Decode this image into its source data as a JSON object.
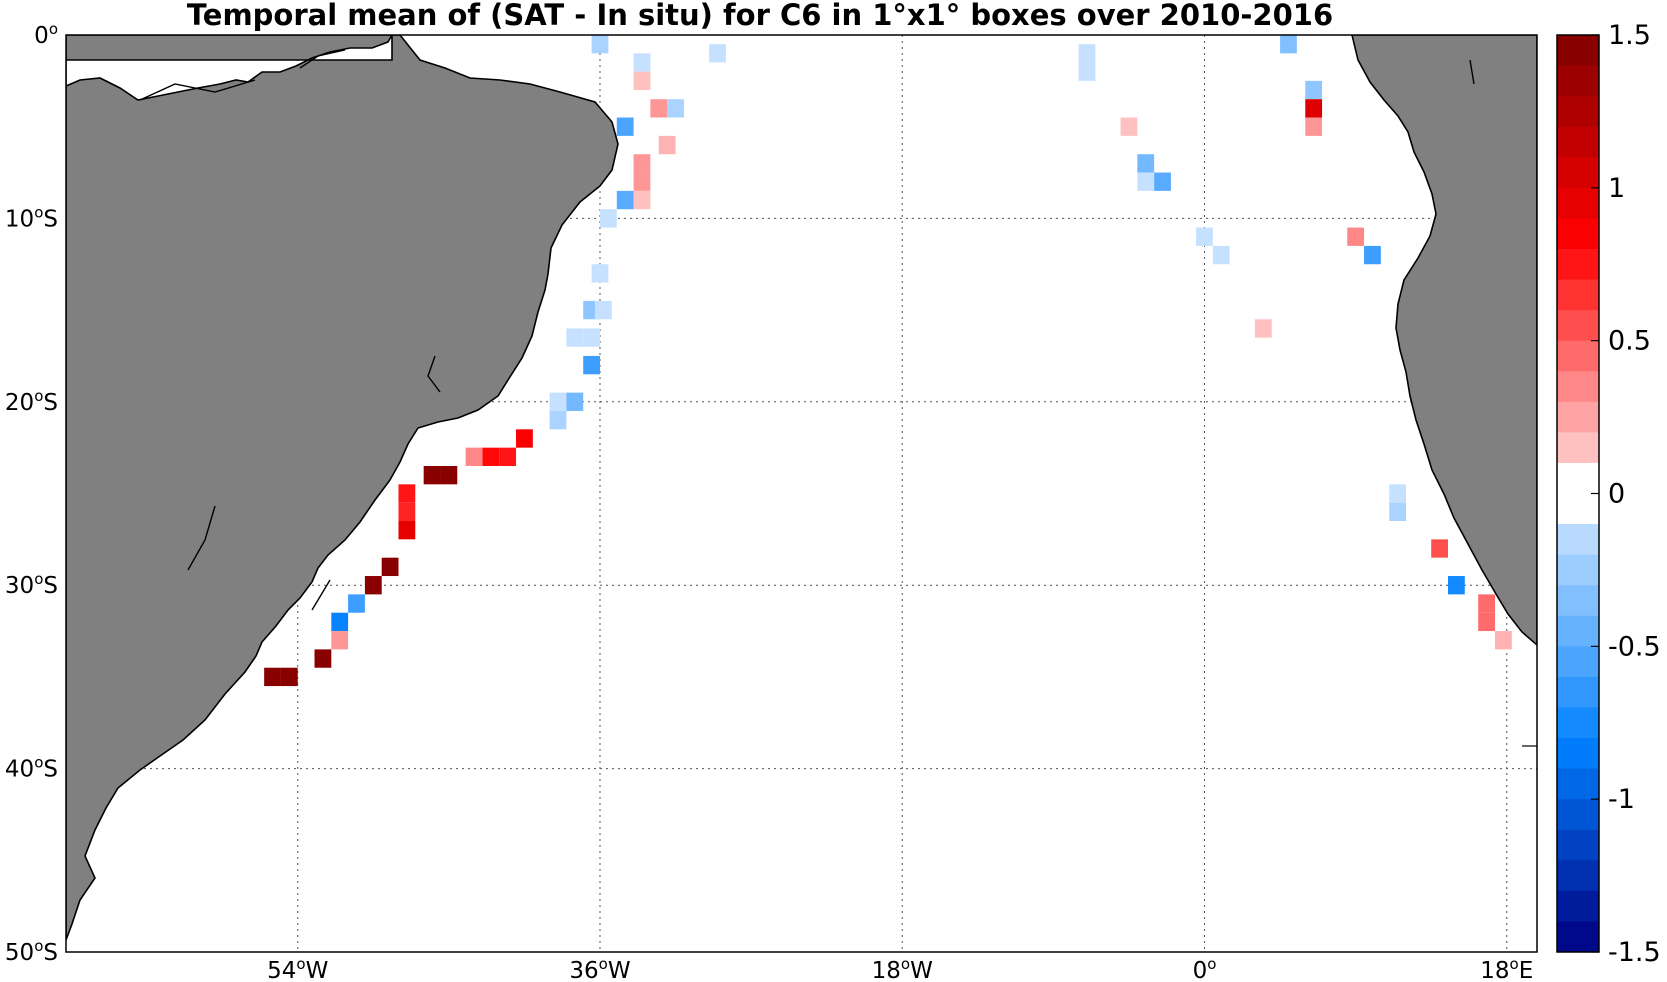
{
  "title": "Temporal mean of (SAT - In situ) for C6 in 1°x1° boxes over 2010-2016",
  "map": {
    "lon_range": [
      -67.8,
      19.8
    ],
    "lat_range": [
      -50,
      0
    ],
    "land_color": "#808080",
    "grid": true
  },
  "lat_ticks": [
    {
      "lat": 0,
      "main": "0",
      "sup": "o",
      "suffix": ""
    },
    {
      "lat": -10,
      "main": "10",
      "sup": "o",
      "suffix": "S"
    },
    {
      "lat": -20,
      "main": "20",
      "sup": "o",
      "suffix": "S"
    },
    {
      "lat": -30,
      "main": "30",
      "sup": "o",
      "suffix": "S"
    },
    {
      "lat": -40,
      "main": "40",
      "sup": "o",
      "suffix": "S"
    },
    {
      "lat": -50,
      "main": "50",
      "sup": "o",
      "suffix": "S"
    }
  ],
  "lon_ticks": [
    {
      "lon": -54,
      "main": "54",
      "sup": "o",
      "suffix": "W"
    },
    {
      "lon": -36,
      "main": "36",
      "sup": "o",
      "suffix": "W"
    },
    {
      "lon": -18,
      "main": "18",
      "sup": "o",
      "suffix": "W"
    },
    {
      "lon": 0,
      "main": "0",
      "sup": "o",
      "suffix": ""
    },
    {
      "lon": 18,
      "main": "18",
      "sup": "o",
      "suffix": "E"
    }
  ],
  "colorbar": {
    "range": [
      -1.5,
      1.5
    ],
    "levels": 30,
    "ticks": [
      {
        "value": 1.5,
        "label": "1.5"
      },
      {
        "value": 1,
        "label": "1"
      },
      {
        "value": 0.5,
        "label": "0.5"
      },
      {
        "value": 0,
        "label": "0"
      },
      {
        "value": -0.5,
        "label": "-0.5"
      },
      {
        "value": -1,
        "label": "-1"
      },
      {
        "value": -1.5,
        "label": "-1.5"
      }
    ]
  },
  "chart_data": {
    "type": "heatmap",
    "value_unit": "SAT - In situ",
    "cells": [
      {
        "lon": -36,
        "lat": -0.5,
        "v": -0.2
      },
      {
        "lon": -33.5,
        "lat": -1.5,
        "v": -0.1
      },
      {
        "lon": -33.5,
        "lat": -2.5,
        "v": 0.15
      },
      {
        "lon": -29,
        "lat": -1,
        "v": -0.1
      },
      {
        "lon": -32.5,
        "lat": -4,
        "v": 0.3
      },
      {
        "lon": -31.5,
        "lat": -4,
        "v": -0.2
      },
      {
        "lon": -34.5,
        "lat": -5,
        "v": -0.55
      },
      {
        "lon": -32,
        "lat": -6,
        "v": 0.2
      },
      {
        "lon": -33.5,
        "lat": -7,
        "v": 0.3
      },
      {
        "lon": -33.5,
        "lat": -8,
        "v": 0.3
      },
      {
        "lon": -34.5,
        "lat": -9,
        "v": -0.5
      },
      {
        "lon": -33.5,
        "lat": -9,
        "v": 0.15
      },
      {
        "lon": -35.5,
        "lat": -10,
        "v": -0.1
      },
      {
        "lon": -36,
        "lat": -13,
        "v": -0.1
      },
      {
        "lon": -36.5,
        "lat": -15,
        "v": -0.3
      },
      {
        "lon": -35.8,
        "lat": -15,
        "v": -0.1
      },
      {
        "lon": -37.5,
        "lat": -16.5,
        "v": -0.1
      },
      {
        "lon": -36.5,
        "lat": -16.5,
        "v": -0.1
      },
      {
        "lon": -36.5,
        "lat": -18,
        "v": -0.6
      },
      {
        "lon": -38.5,
        "lat": -20,
        "v": -0.1
      },
      {
        "lon": -37.5,
        "lat": -20,
        "v": -0.4
      },
      {
        "lon": -38.5,
        "lat": -21,
        "v": -0.2
      },
      {
        "lon": -40.5,
        "lat": -22,
        "v": 0.85
      },
      {
        "lon": -41.5,
        "lat": -23,
        "v": 0.75
      },
      {
        "lon": -42.5,
        "lat": -23,
        "v": 0.8
      },
      {
        "lon": -43.5,
        "lat": -23,
        "v": 0.35
      },
      {
        "lon": -45,
        "lat": -24,
        "v": 1.45
      },
      {
        "lon": -46,
        "lat": -24,
        "v": 1.45
      },
      {
        "lon": -47.5,
        "lat": -25,
        "v": 0.75
      },
      {
        "lon": -47.5,
        "lat": -26,
        "v": 0.7
      },
      {
        "lon": -47.5,
        "lat": -27,
        "v": 0.95
      },
      {
        "lon": -48.5,
        "lat": -29,
        "v": 1.45
      },
      {
        "lon": -49.5,
        "lat": -30,
        "v": 1.45
      },
      {
        "lon": -50.5,
        "lat": -31,
        "v": -0.6
      },
      {
        "lon": -51.5,
        "lat": -32,
        "v": -0.8
      },
      {
        "lon": -51.5,
        "lat": -33,
        "v": 0.3
      },
      {
        "lon": -52.5,
        "lat": -34,
        "v": 1.45
      },
      {
        "lon": -54.5,
        "lat": -35,
        "v": 1.45
      },
      {
        "lon": -55.5,
        "lat": -35,
        "v": 1.45
      },
      {
        "lon": -7,
        "lat": -1,
        "v": -0.1
      },
      {
        "lon": -7,
        "lat": -2,
        "v": -0.1
      },
      {
        "lon": 5,
        "lat": -0.5,
        "v": -0.35
      },
      {
        "lon": 6.5,
        "lat": -3,
        "v": -0.3
      },
      {
        "lon": 6.5,
        "lat": -4,
        "v": 1.0
      },
      {
        "lon": 6.5,
        "lat": -5,
        "v": 0.3
      },
      {
        "lon": -4.5,
        "lat": -5,
        "v": 0.15
      },
      {
        "lon": -3.5,
        "lat": -7,
        "v": -0.4
      },
      {
        "lon": -3.5,
        "lat": -8,
        "v": -0.1
      },
      {
        "lon": -2.5,
        "lat": -8,
        "v": -0.5
      },
      {
        "lon": 9,
        "lat": -11,
        "v": 0.35
      },
      {
        "lon": 10,
        "lat": -12,
        "v": -0.6
      },
      {
        "lon": 0,
        "lat": -11,
        "v": -0.1
      },
      {
        "lon": 1,
        "lat": -12,
        "v": -0.1
      },
      {
        "lon": 3.5,
        "lat": -16,
        "v": 0.15
      },
      {
        "lon": 11.5,
        "lat": -25,
        "v": -0.1
      },
      {
        "lon": 11.5,
        "lat": -26,
        "v": -0.2
      },
      {
        "lon": 14,
        "lat": -28,
        "v": 0.55
      },
      {
        "lon": 15,
        "lat": -30,
        "v": -0.75
      },
      {
        "lon": 16.8,
        "lat": -31,
        "v": 0.45
      },
      {
        "lon": 16.8,
        "lat": -32,
        "v": 0.45
      },
      {
        "lon": 17.8,
        "lat": -33,
        "v": 0.2
      }
    ]
  }
}
